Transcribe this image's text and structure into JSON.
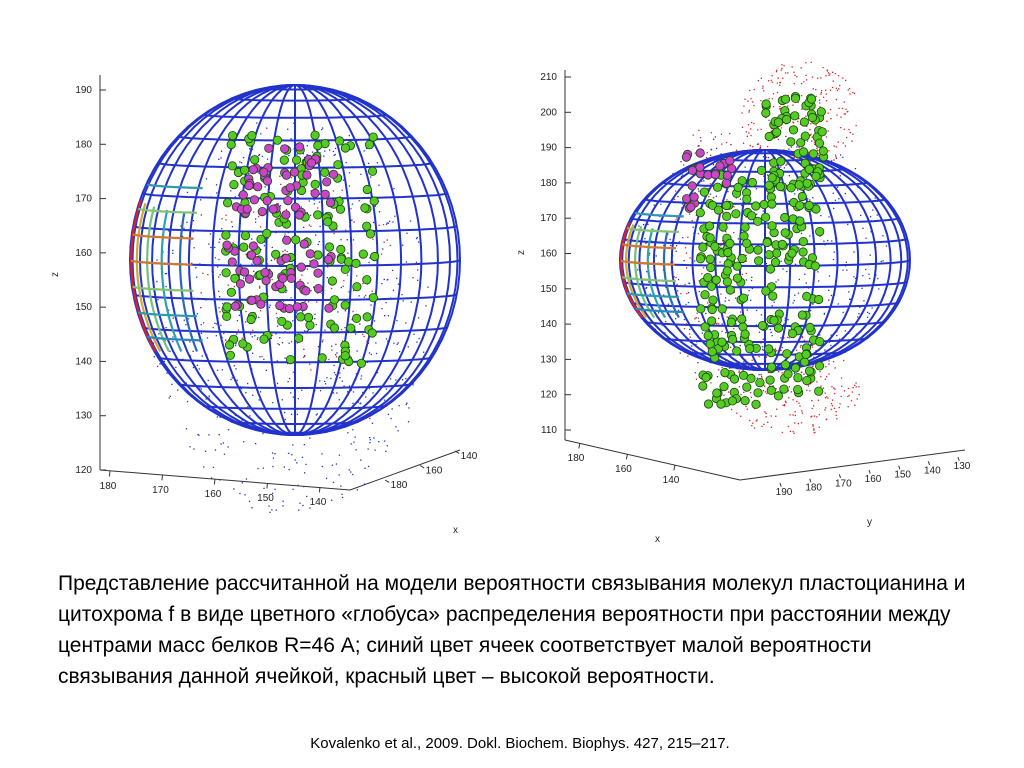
{
  "figures": [
    {
      "id": "left",
      "z_label": "z",
      "x_label": "x",
      "z_ticks": [
        "190",
        "180",
        "170",
        "160",
        "150",
        "140",
        "130",
        "120"
      ],
      "x_ticks": [
        "180",
        "170",
        "160",
        "150",
        "140"
      ],
      "depth_ticks": [
        "140",
        "160",
        "180"
      ]
    },
    {
      "id": "right",
      "z_label": "z",
      "x_label": "x",
      "y_label": "y",
      "z_ticks": [
        "210",
        "200",
        "190",
        "180",
        "170",
        "160",
        "150",
        "140",
        "130",
        "120",
        "110"
      ],
      "x_ticks": [
        "180",
        "160",
        "140"
      ],
      "y_ticks": [
        "190",
        "180",
        "170",
        "160",
        "150",
        "140",
        "130"
      ]
    }
  ],
  "legend_colors": {
    "grid_low_probability": "#2233cc",
    "grid_high_probability": "#dd2222",
    "plastocyanin_atoms": "#55cc22",
    "cytochrome_atoms": "#cc44cc"
  },
  "caption": "Представление рассчитанной на модели вероятности связывания молекул пластоцианина и цитохрома f в виде цветного «глобуса» распределения вероятности при расстоянии между центрами масс белков R=46 А; синий цвет ячеек соответствует малой вероятности связывания данной ячейкой, красный цвет – высокой вероятности.",
  "citation": "Kovalenko et al., 2009. Dokl. Biochem. Biophys. 427, 215–217."
}
